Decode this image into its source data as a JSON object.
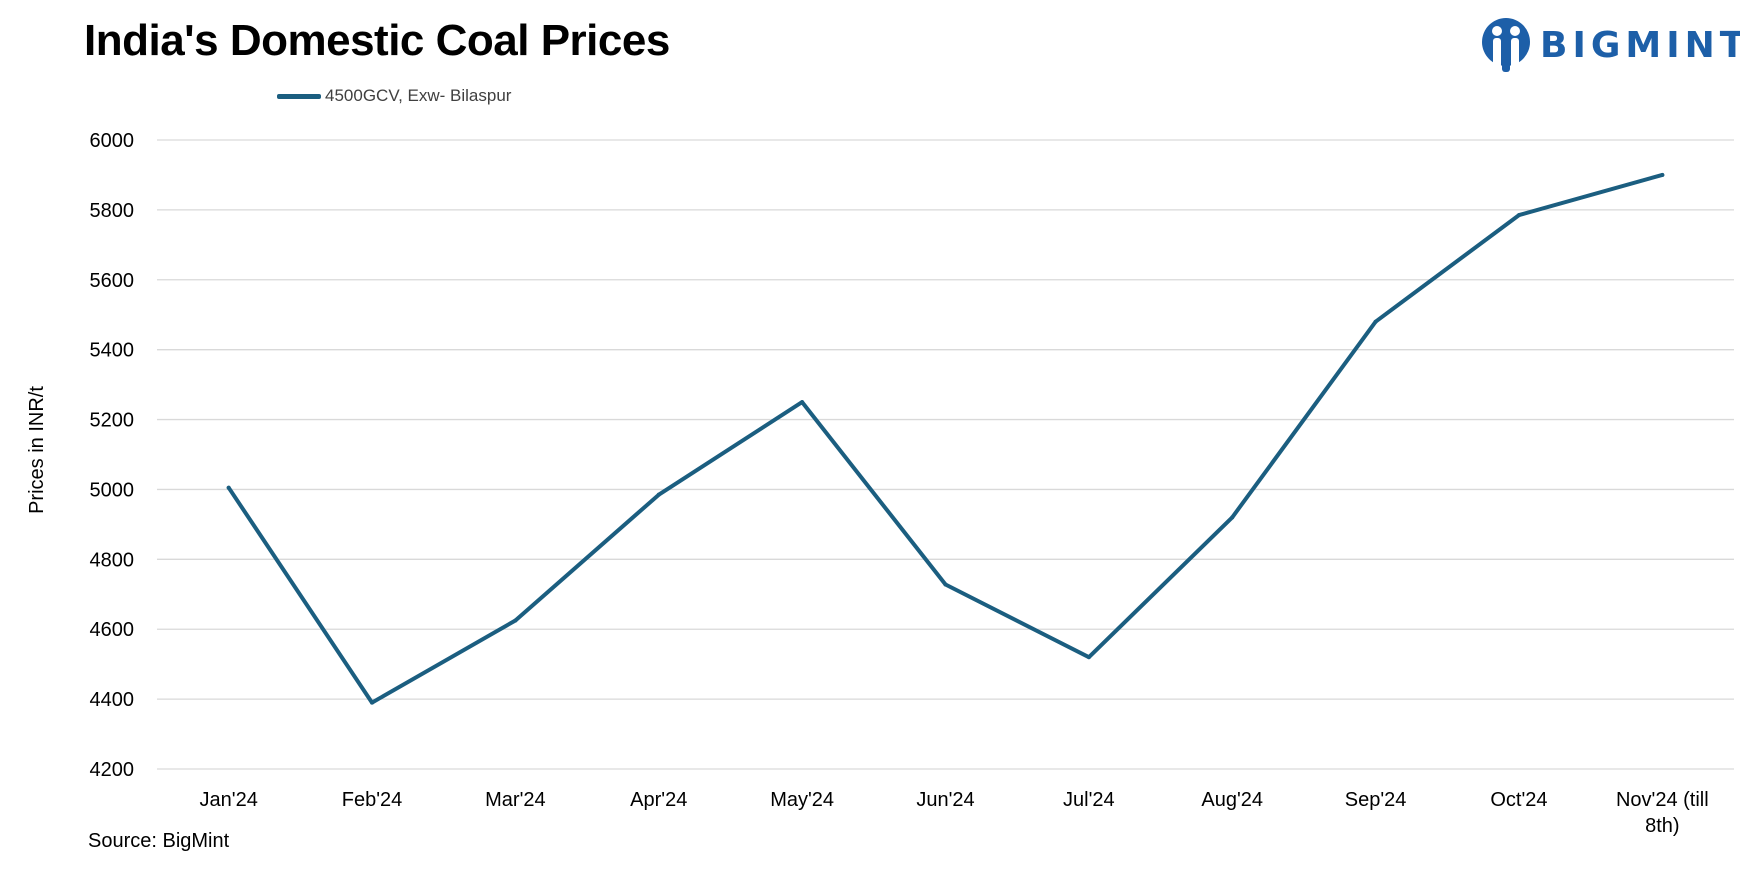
{
  "header": {
    "title": "India's Domestic Coal Prices",
    "logo_text": "BIGMINT"
  },
  "footer": {
    "source": "Source: BigMint"
  },
  "colors": {
    "series": "#1b5e80",
    "grid": "#d9d9d9",
    "logo": "#1d5fa8"
  },
  "chart_data": {
    "type": "line",
    "title": "India's Domestic Coal Prices",
    "xlabel": "",
    "ylabel": "Prices in INR/t",
    "ylim": [
      4200,
      6000
    ],
    "yticks": [
      4200,
      4400,
      4600,
      4800,
      5000,
      5200,
      5400,
      5600,
      5800,
      6000
    ],
    "grid": true,
    "legend_position": "top-left",
    "categories": [
      "Jan'24",
      "Feb'24",
      "Mar'24",
      "Apr'24",
      "May'24",
      "Jun'24",
      "Jul'24",
      "Aug'24",
      "Sep'24",
      "Oct'24",
      "Nov'24 (till 8th)"
    ],
    "series": [
      {
        "name": "4500GCV, Exw- Bilaspur",
        "values": [
          5005,
          4390,
          4625,
          4985,
          5250,
          4728,
          4520,
          4920,
          5480,
          5785,
          5900
        ]
      }
    ]
  }
}
